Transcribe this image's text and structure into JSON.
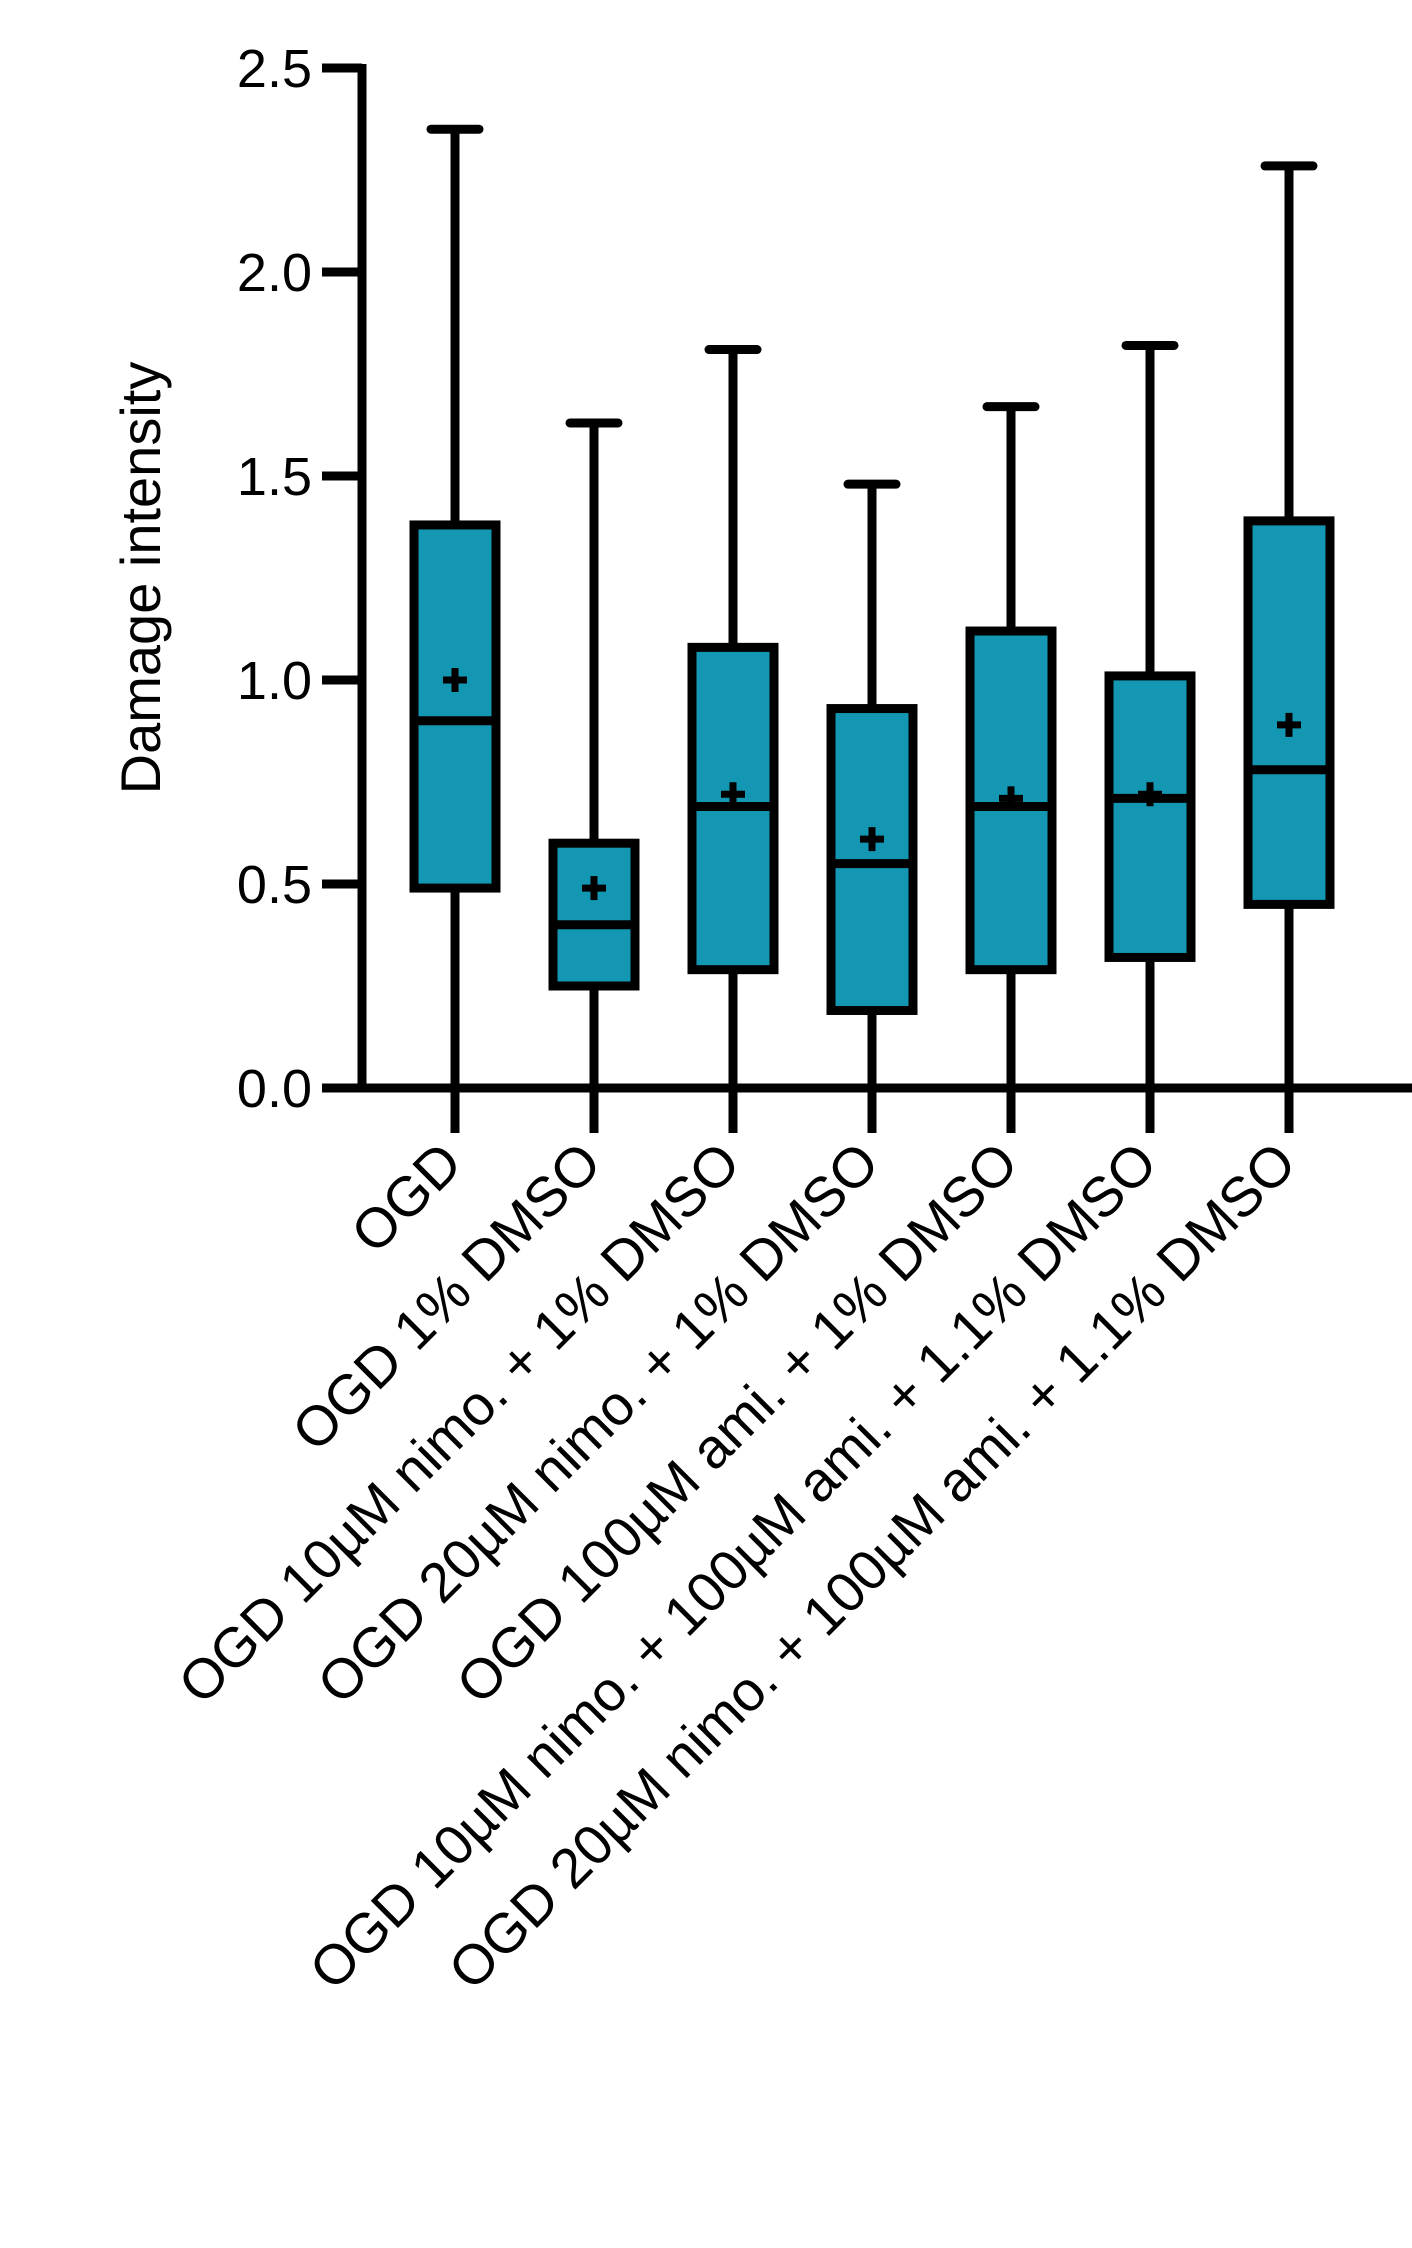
{
  "chart_data": {
    "type": "boxplot",
    "title": "",
    "xlabel": "",
    "ylabel": "Damage intensity",
    "ylim": [
      0,
      2.5
    ],
    "yticks": [
      0.0,
      0.5,
      1.0,
      1.5,
      2.0,
      2.5
    ],
    "ytick_labels": [
      "0.0",
      "0.5",
      "1.0",
      "1.5",
      "2.0",
      "2.5"
    ],
    "box_color": "#1397B3",
    "line_color": "#000000",
    "categories": [
      "OGD",
      "OGD 1% DMSO",
      "OGD 10µM nimo. + 1% DMSO",
      "OGD 20µM nimo. + 1% DMSO",
      "OGD 100µM ami. + 1% DMSO",
      "OGD 10µM nimo. + 100µM ami. + 1.1% DMSO",
      "OGD 20µM nimo. + 100µM ami. + 1.1% DMSO"
    ],
    "boxes": [
      {
        "min": 0.0,
        "q1": 0.49,
        "median": 0.9,
        "q3": 1.38,
        "max": 2.35,
        "mean": 1.0
      },
      {
        "min": 0.0,
        "q1": 0.25,
        "median": 0.4,
        "q3": 0.6,
        "max": 1.63,
        "mean": 0.49
      },
      {
        "min": 0.0,
        "q1": 0.29,
        "median": 0.69,
        "q3": 1.08,
        "max": 1.81,
        "mean": 0.72
      },
      {
        "min": 0.0,
        "q1": 0.19,
        "median": 0.55,
        "q3": 0.93,
        "max": 1.48,
        "mean": 0.61
      },
      {
        "min": 0.0,
        "q1": 0.29,
        "median": 0.69,
        "q3": 1.12,
        "max": 1.67,
        "mean": 0.71
      },
      {
        "min": 0.0,
        "q1": 0.32,
        "median": 0.71,
        "q3": 1.01,
        "max": 1.82,
        "mean": 0.72
      },
      {
        "min": 0.0,
        "q1": 0.45,
        "median": 0.78,
        "q3": 1.39,
        "max": 2.26,
        "mean": 0.89
      }
    ]
  }
}
